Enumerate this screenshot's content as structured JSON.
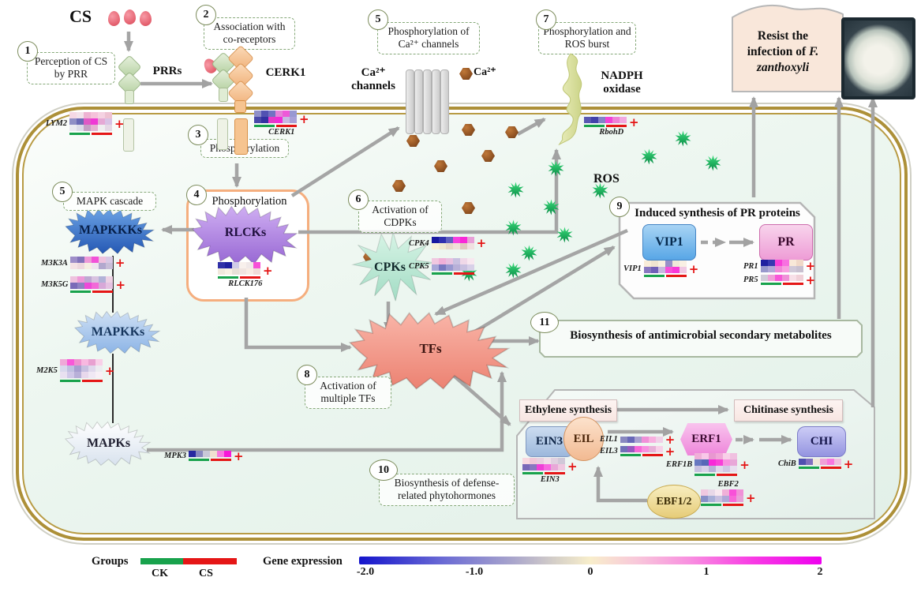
{
  "figure": {
    "cs_title": "CS",
    "flag": {
      "line1": "Resist the",
      "line2a": "infection of ",
      "line2b": "F.",
      "line3": "zanthoxyli"
    }
  },
  "nodes": {
    "prrs": "PRRs",
    "cerk1": "CERK1",
    "ca_channels": "Ca²⁺ channels",
    "ca_ion": "Ca²⁺",
    "nadph": "NADPH oxidase",
    "ros": "ROS",
    "mapkkks": "MAPKKKs",
    "mapkks": "MAPKKs",
    "mapks": "MAPKs",
    "rlcks": "RLCKs",
    "cpks": "CPKs",
    "tfs": "TFs",
    "vip1": "VIP1",
    "pr": "PR",
    "ein3": "EIN3",
    "eil": "EIL",
    "erf1": "ERF1",
    "chi": "CHI",
    "ebf12": "EBF1/2",
    "ethylene": "Ethylene synthesis",
    "chitinase": "Chitinase synthesis"
  },
  "steps": [
    {
      "num": "1",
      "text": "Perception of CS by PRR"
    },
    {
      "num": "2",
      "text": "Association with co-receptors"
    },
    {
      "num": "3",
      "text": "Phosphorylation"
    },
    {
      "num": "4",
      "text": "Phosphorylation"
    },
    {
      "num": "5",
      "text": "MAPK cascade"
    },
    {
      "num": "5",
      "text": "Phosphorylation of Ca²⁺ channels"
    },
    {
      "num": "6",
      "text": "Activation of CDPKs"
    },
    {
      "num": "7",
      "text": "Phosphorylation and ROS burst"
    },
    {
      "num": "8",
      "text": "Activation of multiple TFs"
    },
    {
      "num": "9",
      "text": "Induced synthesis of PR proteins"
    },
    {
      "num": "10",
      "text": "Biosynthesis of defense-related phytohormones"
    },
    {
      "num": "11",
      "text": "Biosynthesis of antimicrobial secondary metabolites"
    }
  ],
  "ui": {
    "plus": "+"
  },
  "legend": {
    "groups_label": "Groups",
    "ck_label": "CK",
    "cs_label": "CS",
    "ck_color": "#18a24c",
    "cs_color": "#e51616",
    "expression_label": "Gene expression",
    "ticks": [
      "-2.0",
      "-1.0",
      "0",
      "1",
      "2"
    ]
  },
  "genes": {
    "lym2": {
      "label": "LYM2",
      "bar": true,
      "rows": [
        [
          "#f5d8e5",
          "#f2e2ea",
          "#eeb2d2",
          "#f5c2da",
          "#f5d2e2",
          "#eec2d2"
        ],
        [
          "#8f8fc5",
          "#6a6ab5",
          "#df59c5",
          "#ef39d5",
          "#e5a9d5",
          "#d8c2e5"
        ],
        [
          "#eaeaf0",
          "#dcdce8",
          "#c5a0c5",
          "#e5b2d2",
          "#efeff0",
          "#e5d8e5"
        ]
      ]
    },
    "cerk1": {
      "label": "CERK1",
      "bar": true,
      "rows": [
        [
          "#8f8fc8",
          "#5252b2",
          "#7272c2",
          "#e582d8",
          "#ee59d8",
          "#9898d2"
        ],
        [
          "#4949a9",
          "#3232a2",
          "#e539c8",
          "#f229d8",
          "#c8b8e2",
          "#a8a0d8"
        ]
      ]
    },
    "rbohd": {
      "label": "RbohD",
      "bar": true,
      "rows": [
        [
          "#5858b2",
          "#4242aa",
          "#8282c8",
          "#f242d8",
          "#ee82d8",
          "#f2a8e0"
        ]
      ]
    },
    "m3k3a": {
      "label": "M3K3A",
      "bar": false,
      "rows": [
        [
          "#9e8ec8",
          "#8272ba",
          "#ee99d8",
          "#f252d8",
          "#eec2de",
          "#d8c8e5"
        ],
        [
          "#f5e2e5",
          "#eed8de",
          "#f5eee2",
          "#eee5ee",
          "#b2a8ce",
          "#c8bed8"
        ]
      ]
    },
    "m3k5g": {
      "label": "M3K5G",
      "bar": true,
      "rows": [
        [
          "#eec2de",
          "#ee99d8",
          "#bea8d2",
          "#d8c2e0",
          "#b2b2d8",
          "#eed2e5"
        ],
        [
          "#7a6ab8",
          "#8e82c2",
          "#ee49d8",
          "#f269d8",
          "#d8a8d8",
          "#e5c2e2"
        ]
      ]
    },
    "m2k5": {
      "label": "M2K5",
      "bar": true,
      "rows": [
        [
          "#efa8d8",
          "#f858d8",
          "#ef90d0",
          "#f8b8e0",
          "#e8a0d0",
          "#f8d0e8"
        ],
        [
          "#d8d8ec",
          "#c0c0e0",
          "#a8a0d0",
          "#c8c0e0",
          "#e0d8ec",
          "#ececf0"
        ],
        [
          "#e8e0f0",
          "#d0c8e8",
          "#b8b0d8",
          "#e8d8ec",
          "#f0e8f4",
          "#f8f0f6"
        ]
      ]
    },
    "mpk3": {
      "label": "MPK3",
      "bar": true,
      "rows": [
        [
          "#2828a0",
          "#8888c0",
          "#c8c8d8",
          "#f0e0d0",
          "#f878e0",
          "#f818d8"
        ]
      ]
    },
    "rlck176": {
      "label": "RLCK176",
      "bar": true,
      "rows": [
        [
          "#3030a8",
          "#2020a0",
          "#d0cce8",
          "#f8f0ec",
          "#f0e8e8",
          "#f850d8"
        ],
        [
          "#f0e8dc",
          "#f8f0e4",
          "#e8e0d8",
          "#f0e4e0",
          "#f8ece4",
          "#f0dcd8"
        ]
      ]
    },
    "cpk4": {
      "label": "CPK4",
      "bar": false,
      "rows": [
        [
          "#1818a0",
          "#3030b0",
          "#6060c0",
          "#f840e0",
          "#f828d8",
          "#e8a0d8"
        ],
        [
          "#f8f0d8",
          "#f0e8d0",
          "#e8d8c8",
          "#f0e0d8",
          "#e0c8c0",
          "#f0e0e0"
        ]
      ]
    },
    "cpk5": {
      "label": "CPK5",
      "bar": true,
      "rows": [
        [
          "#f0c8e0",
          "#f0b0d8",
          "#e8c0e0",
          "#c8c0e0",
          "#f0d8e8",
          "#f8e8f0"
        ],
        [
          "#a8a8d8",
          "#7878c0",
          "#9898d0",
          "#b8b0d8",
          "#c8c0e0",
          "#d8d0e8"
        ]
      ]
    },
    "vip1": {
      "label": "VIP1",
      "bar": true,
      "rows": [
        [
          "#f8ecd8",
          "#f0e4d0",
          "#f8f0e0",
          "#9890c8",
          "#f0e8d8",
          "#f8f0e4"
        ],
        [
          "#8878c0",
          "#7060b8",
          "#c8b8e0",
          "#f850d8",
          "#f838d8",
          "#f0c8e4"
        ]
      ]
    },
    "pr1": {
      "label": "PR1",
      "bar": false,
      "rows": [
        [
          "#2020a0",
          "#3838b0",
          "#f840d8",
          "#f870e0",
          "#f8e8d8",
          "#f0d8c8"
        ],
        [
          "#9898cc",
          "#b0a8d8",
          "#f088d8",
          "#f8a0e0",
          "#d0c8d8",
          "#c8c0d0"
        ]
      ]
    },
    "pr5": {
      "label": "PR5",
      "bar": true,
      "rows": [
        [
          "#d0ccd8",
          "#f0a0d8",
          "#f858d8",
          "#f090d8",
          "#f8e0e8",
          "#f0d0d8"
        ]
      ]
    },
    "ein3": {
      "label": "EIN3",
      "bar": true,
      "rows": [
        [
          "#f8d8e0",
          "#f0c8d8",
          "#e8d0e0",
          "#f0e0e8",
          "#e0d0e0",
          "#d0c8d8"
        ],
        [
          "#7868b8",
          "#8878c0",
          "#f040d8",
          "#f868e0",
          "#e8a8d8",
          "#f0c8e0"
        ]
      ]
    },
    "eil1": {
      "label": "EIL1",
      "bar": false,
      "rows": [
        [
          "#8888c0",
          "#6868b8",
          "#a8a0d0",
          "#f090d8",
          "#f8b0e0",
          "#f0d0e8"
        ]
      ]
    },
    "eil3": {
      "label": "EIL3",
      "bar": true,
      "rows": [
        [
          "#7070b8",
          "#9858c0",
          "#f868d8",
          "#f890e0",
          "#e8b0d8",
          "#f8d0e8"
        ]
      ]
    },
    "erf1b": {
      "label": "ERF1B",
      "bar": true,
      "rows": [
        [
          "#f0b0d8",
          "#f8c8e8",
          "#e898d0",
          "#f0a8d8",
          "#f8d0e8",
          "#f0c0e0"
        ],
        [
          "#6878c0",
          "#5868b8",
          "#f828d8",
          "#f840d8",
          "#f890e0",
          "#e8a8d8"
        ],
        [
          "#c8c0e0",
          "#d8d0e8",
          "#b8b0d8",
          "#e0d8ec",
          "#d0c8e4",
          "#e8e0f0"
        ]
      ]
    },
    "chib": {
      "label": "ChiB",
      "bar": true,
      "rows": [
        [
          "#5050b0",
          "#8070c0",
          "#f0e8d8",
          "#f0a0d8",
          "#f878e0",
          "#f0c0e0"
        ]
      ]
    },
    "ebf2": {
      "label": "EBF2",
      "bar": true,
      "rows": [
        [
          "#f0c8e0",
          "#e8d8e8",
          "#f8e8f0",
          "#f0b0d8",
          "#f850d8",
          "#f090d8"
        ],
        [
          "#8890c8",
          "#a8b0d8",
          "#c8c0e0",
          "#b0a8d8",
          "#f868d8",
          "#e8a0d8"
        ]
      ]
    }
  }
}
